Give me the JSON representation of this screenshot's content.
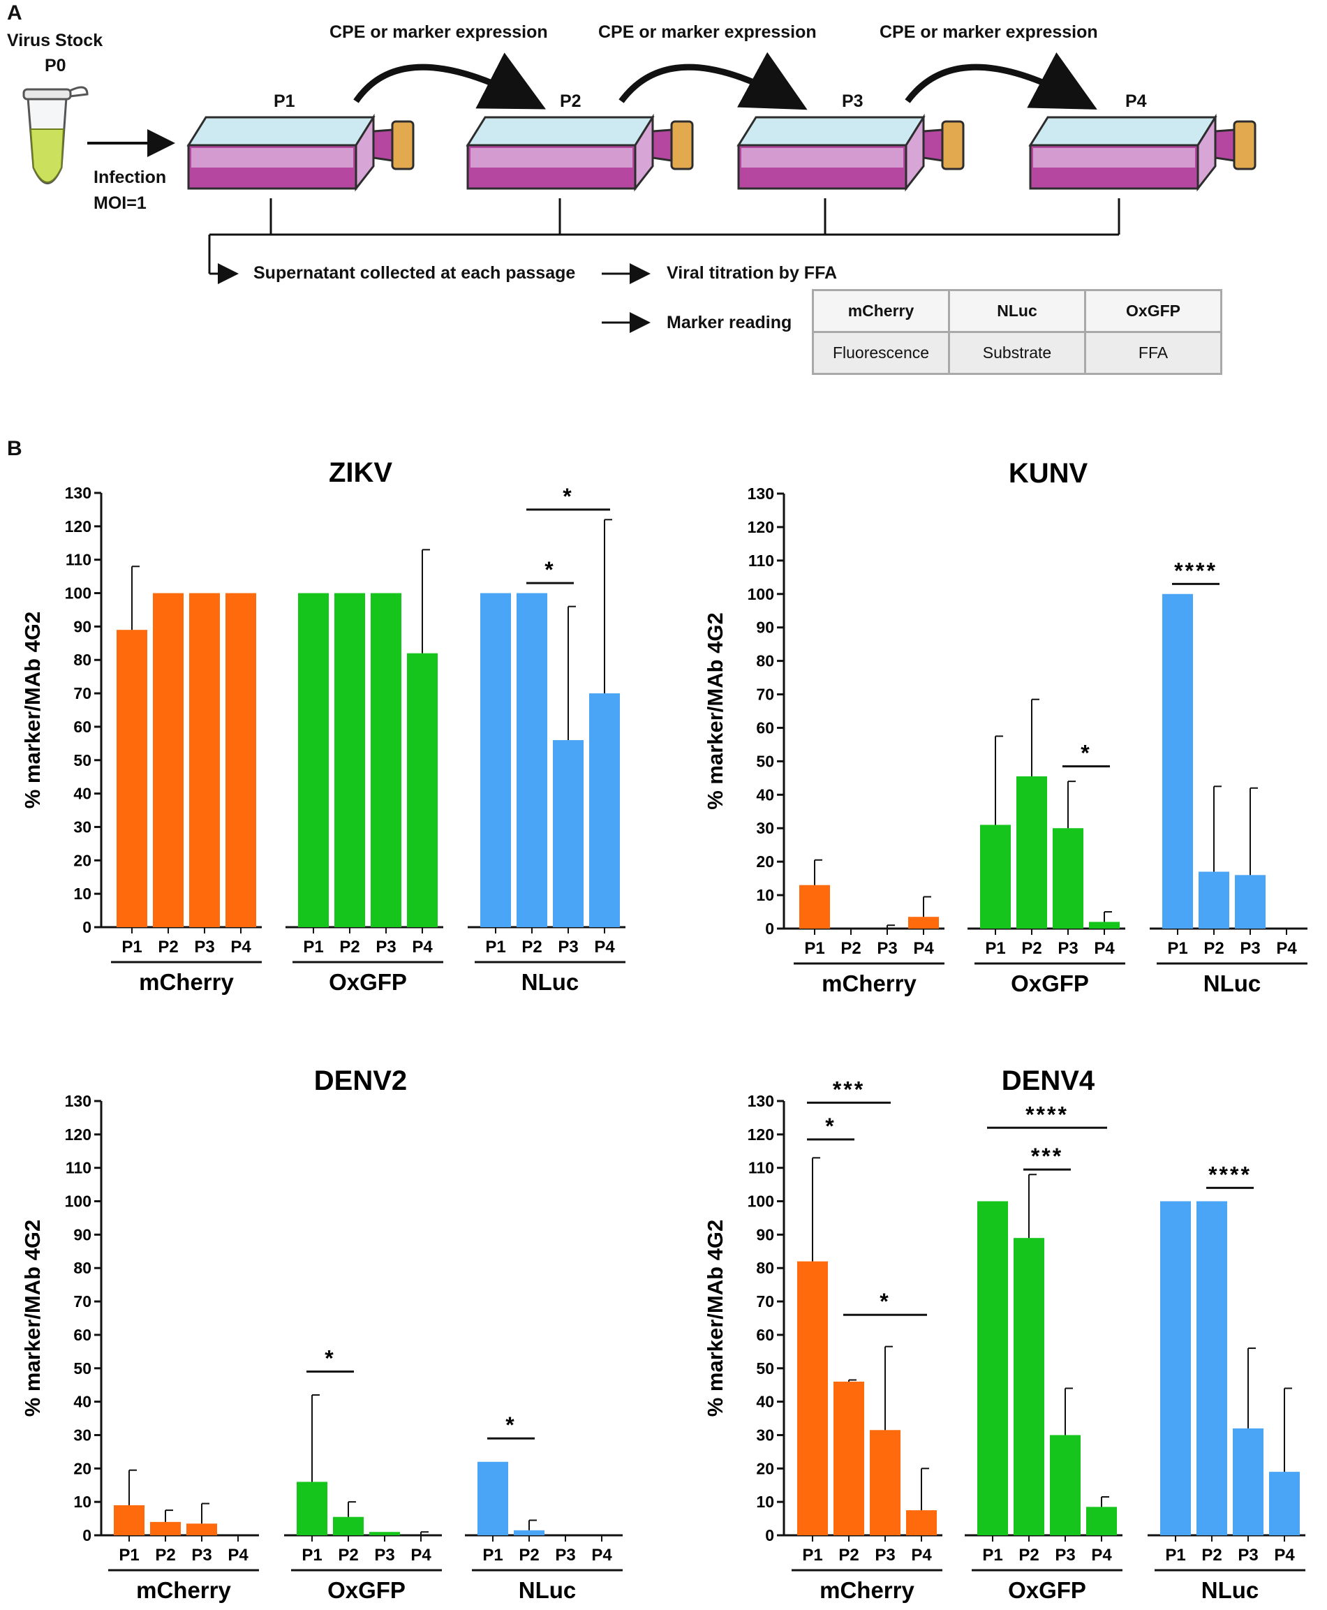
{
  "panel_a": {
    "letter": "A",
    "virus_stock": "Virus Stock",
    "p0": "P0",
    "infection": "Infection",
    "moi": "MOI=1",
    "cpe_label": "CPE or marker expression",
    "passages": [
      "P1",
      "P2",
      "P3",
      "P4"
    ],
    "supernatant": "Supernatant collected at each passage",
    "titration": "Viral titration by FFA",
    "marker_reading": "Marker reading",
    "table_headers": [
      "mCherry",
      "NLuc",
      "OxGFP"
    ],
    "table_methods": [
      "Fluorescence",
      "Substrate",
      "FFA"
    ]
  },
  "panel_b": {
    "letter": "B"
  },
  "colors": {
    "mCherry": "#ff6a0c",
    "OxGFP": "#16c51c",
    "NLuc": "#4aa5f6"
  },
  "chart_data": [
    {
      "type": "bar",
      "title": "ZIKV",
      "ylabel": "% marker/MAb 4G2",
      "ylim": [
        0,
        130
      ],
      "yticks": [
        0,
        10,
        20,
        30,
        40,
        50,
        60,
        70,
        80,
        90,
        100,
        110,
        120,
        130
      ],
      "groups": [
        {
          "name": "mCherry",
          "categories": [
            "P1",
            "P2",
            "P3",
            "P4"
          ],
          "values": [
            89,
            100,
            100,
            100
          ],
          "errors": [
            19,
            0,
            0,
            0
          ]
        },
        {
          "name": "OxGFP",
          "categories": [
            "P1",
            "P2",
            "P3",
            "P4"
          ],
          "values": [
            100,
            100,
            100,
            82
          ],
          "errors": [
            0,
            0,
            0,
            31
          ]
        },
        {
          "name": "NLuc",
          "categories": [
            "P1",
            "P2",
            "P3",
            "P4"
          ],
          "values": [
            100,
            100,
            56,
            70
          ],
          "errors": [
            0,
            0,
            40,
            52
          ]
        }
      ],
      "significance": [
        {
          "group": 2,
          "from": 1,
          "to": 3,
          "label": "*",
          "y": 125
        },
        {
          "group": 2,
          "from": 1,
          "to": 2,
          "label": "*",
          "y": 103
        }
      ]
    },
    {
      "type": "bar",
      "title": "KUNV",
      "ylabel": "% marker/MAb 4G2",
      "ylim": [
        0,
        130
      ],
      "yticks": [
        0,
        10,
        20,
        30,
        40,
        50,
        60,
        70,
        80,
        90,
        100,
        110,
        120,
        130
      ],
      "groups": [
        {
          "name": "mCherry",
          "categories": [
            "P1",
            "P2",
            "P3",
            "P4"
          ],
          "values": [
            13,
            0,
            0,
            3.5
          ],
          "errors": [
            7.5,
            0,
            1,
            6
          ]
        },
        {
          "name": "OxGFP",
          "categories": [
            "P1",
            "P2",
            "P3",
            "P4"
          ],
          "values": [
            31,
            45.5,
            30,
            2
          ],
          "errors": [
            26.5,
            23,
            14,
            3
          ]
        },
        {
          "name": "NLuc",
          "categories": [
            "P1",
            "P2",
            "P3",
            "P4"
          ],
          "values": [
            100,
            17,
            16,
            0
          ],
          "errors": [
            0,
            25.5,
            26,
            0
          ]
        }
      ],
      "significance": [
        {
          "group": 1,
          "from": 2,
          "to": 3,
          "label": "*",
          "y": 48.5
        },
        {
          "group": 2,
          "from": 0,
          "to": 1,
          "label": "****",
          "y": 103
        }
      ]
    },
    {
      "type": "bar",
      "title": "DENV2",
      "ylabel": "% marker/MAb 4G2",
      "ylim": [
        0,
        130
      ],
      "yticks": [
        0,
        10,
        20,
        30,
        40,
        50,
        60,
        70,
        80,
        90,
        100,
        110,
        120,
        130
      ],
      "groups": [
        {
          "name": "mCherry",
          "categories": [
            "P1",
            "P2",
            "P3",
            "P4"
          ],
          "values": [
            9,
            4,
            3.5,
            0
          ],
          "errors": [
            10.5,
            3.5,
            6,
            0
          ]
        },
        {
          "name": "OxGFP",
          "categories": [
            "P1",
            "P2",
            "P3",
            "P4"
          ],
          "values": [
            16,
            5.5,
            1,
            0
          ],
          "errors": [
            26,
            4.5,
            0,
            1
          ]
        },
        {
          "name": "NLuc",
          "categories": [
            "P1",
            "P2",
            "P3",
            "P4"
          ],
          "values": [
            22,
            1.5,
            0,
            0
          ],
          "errors": [
            0,
            3,
            0,
            0
          ]
        }
      ],
      "significance": [
        {
          "group": 1,
          "from": 0,
          "to": 1,
          "label": "*",
          "y": 49
        },
        {
          "group": 2,
          "from": 0,
          "to": 1,
          "label": "*",
          "y": 29
        }
      ]
    },
    {
      "type": "bar",
      "title": "DENV4",
      "ylabel": "% marker/MAb 4G2",
      "ylim": [
        0,
        130
      ],
      "yticks": [
        0,
        10,
        20,
        30,
        40,
        50,
        60,
        70,
        80,
        90,
        100,
        110,
        120,
        130
      ],
      "groups": [
        {
          "name": "mCherry",
          "categories": [
            "P1",
            "P2",
            "P3",
            "P4"
          ],
          "values": [
            82,
            46,
            31.5,
            7.5
          ],
          "errors": [
            31,
            0.5,
            25,
            12.5
          ]
        },
        {
          "name": "OxGFP",
          "categories": [
            "P1",
            "P2",
            "P3",
            "P4"
          ],
          "values": [
            100,
            89,
            30,
            8.5
          ],
          "errors": [
            0,
            19,
            14,
            3
          ]
        },
        {
          "name": "NLuc",
          "categories": [
            "P1",
            "P2",
            "P3",
            "P4"
          ],
          "values": [
            100,
            100,
            32,
            19
          ],
          "errors": [
            0,
            0,
            24,
            25
          ]
        }
      ],
      "significance": [
        {
          "group": 0,
          "from": 0,
          "to": 2,
          "label": "***",
          "y": 129.5
        },
        {
          "group": 0,
          "from": 0,
          "to": 1,
          "label": "*",
          "y": 118.5
        },
        {
          "group": 0,
          "from": 1,
          "to": 3,
          "label": "*",
          "y": 66
        },
        {
          "group": 1,
          "from": 0,
          "to": 3,
          "label": "****",
          "y": 122
        },
        {
          "group": 1,
          "from": 1,
          "to": 2,
          "label": "***",
          "y": 109.5
        },
        {
          "group": 2,
          "from": 1,
          "to": 2,
          "label": "****",
          "y": 104
        }
      ]
    }
  ]
}
